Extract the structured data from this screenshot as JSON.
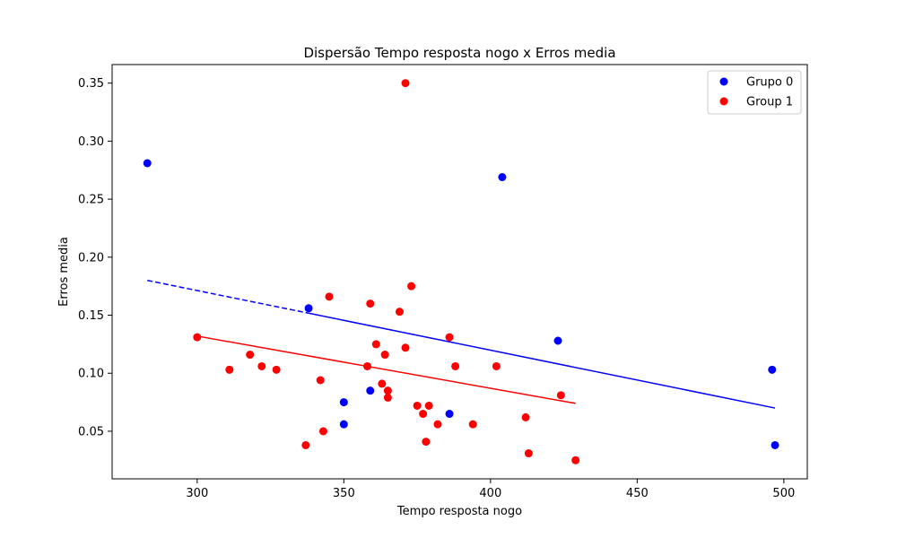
{
  "chart_data": {
    "type": "scatter",
    "title": "Dispersão Tempo resposta nogo x Erros media",
    "xlabel": "Tempo resposta nogo",
    "ylabel": "Erros media",
    "xlim": [
      271,
      508
    ],
    "ylim": [
      0.009,
      0.366
    ],
    "xticks": [
      300,
      350,
      400,
      450,
      500
    ],
    "yticks": [
      0.05,
      0.1,
      0.15,
      0.2,
      0.25,
      0.3,
      0.35
    ],
    "xtick_labels": [
      "300",
      "350",
      "400",
      "450",
      "500"
    ],
    "ytick_labels": [
      "0.05",
      "0.10",
      "0.15",
      "0.20",
      "0.25",
      "0.30",
      "0.35"
    ],
    "legend_position": "top-right",
    "series": [
      {
        "name": "Grupo 0",
        "color": "#0000ff",
        "points": [
          [
            283,
            0.281
          ],
          [
            338,
            0.156
          ],
          [
            350,
            0.075
          ],
          [
            350,
            0.056
          ],
          [
            359,
            0.085
          ],
          [
            386,
            0.065
          ],
          [
            404,
            0.269
          ],
          [
            423,
            0.128
          ],
          [
            496,
            0.103
          ],
          [
            497,
            0.038
          ]
        ],
        "trend": {
          "x": [
            283,
            497
          ],
          "y": [
            0.18,
            0.07
          ],
          "style": "dashed-then-solid",
          "split_x": 338
        }
      },
      {
        "name": "Group 1",
        "color": "#ff0000",
        "points": [
          [
            300,
            0.131
          ],
          [
            311,
            0.103
          ],
          [
            318,
            0.116
          ],
          [
            322,
            0.106
          ],
          [
            327,
            0.103
          ],
          [
            337,
            0.038
          ],
          [
            342,
            0.094
          ],
          [
            343,
            0.05
          ],
          [
            345,
            0.166
          ],
          [
            358,
            0.106
          ],
          [
            359,
            0.16
          ],
          [
            361,
            0.125
          ],
          [
            363,
            0.091
          ],
          [
            364,
            0.116
          ],
          [
            365,
            0.085
          ],
          [
            365,
            0.079
          ],
          [
            369,
            0.153
          ],
          [
            371,
            0.35
          ],
          [
            371,
            0.122
          ],
          [
            373,
            0.175
          ],
          [
            375,
            0.072
          ],
          [
            377,
            0.065
          ],
          [
            378,
            0.041
          ],
          [
            379,
            0.072
          ],
          [
            382,
            0.056
          ],
          [
            386,
            0.131
          ],
          [
            388,
            0.106
          ],
          [
            394,
            0.056
          ],
          [
            402,
            0.106
          ],
          [
            412,
            0.062
          ],
          [
            413,
            0.031
          ],
          [
            424,
            0.081
          ],
          [
            429,
            0.025
          ]
        ],
        "trend": {
          "x": [
            300,
            429
          ],
          "y": [
            0.132,
            0.074
          ],
          "style": "solid"
        }
      }
    ]
  }
}
